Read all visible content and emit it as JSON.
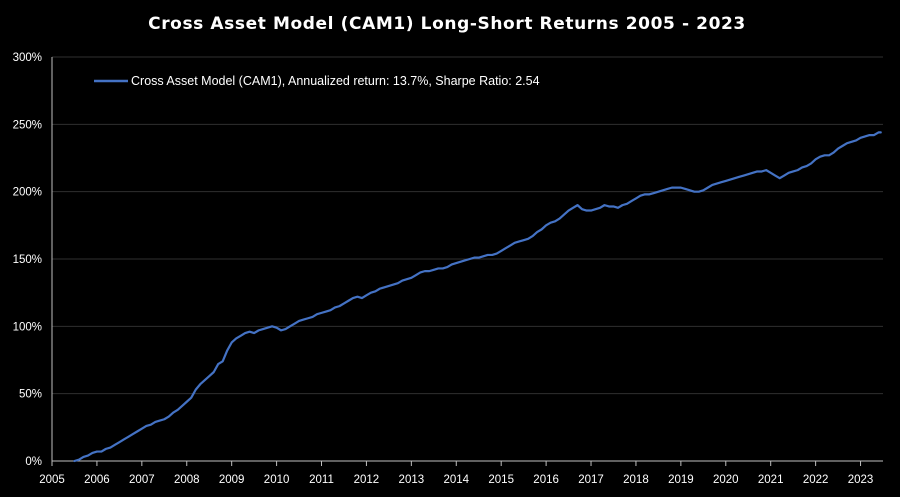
{
  "chart_data": {
    "type": "line",
    "title": "Cross Asset Model (CAM1) Long-Short Returns 2005 - 2023",
    "xlabel": "",
    "ylabel": "",
    "x_tick_labels": [
      "2005",
      "2006",
      "2007",
      "2008",
      "2009",
      "2010",
      "2011",
      "2012",
      "2013",
      "2014",
      "2015",
      "2016",
      "2017",
      "2018",
      "2019",
      "2020",
      "2021",
      "2022",
      "2023"
    ],
    "y_tick_labels": [
      "0%",
      "50%",
      "100%",
      "150%",
      "200%",
      "250%",
      "300%"
    ],
    "xlim": [
      2005.0,
      2023.5
    ],
    "ylim": [
      0,
      300
    ],
    "grid": "horizontal",
    "legend_position": "top-left",
    "background_color": "#000000",
    "gridline_color": "#2f2f2f",
    "axis_color": "#bfbfbf",
    "series": [
      {
        "name": "Cross Asset Model (CAM1), Annualized return: 13.7%, Sharpe Ratio: 2.54",
        "color": "#4472C4",
        "x": [
          2005.5,
          2005.6,
          2005.7,
          2005.8,
          2005.9,
          2006.0,
          2006.1,
          2006.2,
          2006.3,
          2006.4,
          2006.5,
          2006.6,
          2006.7,
          2006.8,
          2006.9,
          2007.0,
          2007.1,
          2007.2,
          2007.3,
          2007.4,
          2007.5,
          2007.6,
          2007.7,
          2007.8,
          2007.9,
          2008.0,
          2008.1,
          2008.2,
          2008.3,
          2008.4,
          2008.5,
          2008.6,
          2008.7,
          2008.8,
          2008.9,
          2009.0,
          2009.1,
          2009.2,
          2009.3,
          2009.4,
          2009.5,
          2009.6,
          2009.7,
          2009.8,
          2009.9,
          2010.0,
          2010.1,
          2010.2,
          2010.3,
          2010.4,
          2010.5,
          2010.6,
          2010.7,
          2010.8,
          2010.9,
          2011.0,
          2011.1,
          2011.2,
          2011.3,
          2011.4,
          2011.5,
          2011.6,
          2011.7,
          2011.8,
          2011.9,
          2012.0,
          2012.1,
          2012.2,
          2012.3,
          2012.4,
          2012.5,
          2012.6,
          2012.7,
          2012.8,
          2012.9,
          2013.0,
          2013.1,
          2013.2,
          2013.3,
          2013.4,
          2013.5,
          2013.6,
          2013.7,
          2013.8,
          2013.9,
          2014.0,
          2014.1,
          2014.2,
          2014.3,
          2014.4,
          2014.5,
          2014.6,
          2014.7,
          2014.8,
          2014.9,
          2015.0,
          2015.1,
          2015.2,
          2015.3,
          2015.4,
          2015.5,
          2015.6,
          2015.7,
          2015.8,
          2015.9,
          2016.0,
          2016.1,
          2016.2,
          2016.3,
          2016.4,
          2016.5,
          2016.6,
          2016.7,
          2016.8,
          2016.9,
          2017.0,
          2017.1,
          2017.2,
          2017.3,
          2017.4,
          2017.5,
          2017.6,
          2017.7,
          2017.8,
          2017.9,
          2018.0,
          2018.1,
          2018.2,
          2018.3,
          2018.4,
          2018.5,
          2018.6,
          2018.7,
          2018.8,
          2018.9,
          2019.0,
          2019.1,
          2019.2,
          2019.3,
          2019.4,
          2019.5,
          2019.6,
          2019.7,
          2019.8,
          2019.9,
          2020.0,
          2020.1,
          2020.2,
          2020.3,
          2020.4,
          2020.5,
          2020.6,
          2020.7,
          2020.8,
          2020.9,
          2021.0,
          2021.1,
          2021.2,
          2021.3,
          2021.4,
          2021.5,
          2021.6,
          2021.7,
          2021.8,
          2021.9,
          2022.0,
          2022.1,
          2022.2,
          2022.3,
          2022.4,
          2022.5,
          2022.6,
          2022.7,
          2022.8,
          2022.9,
          2023.0,
          2023.1,
          2023.2,
          2023.3,
          2023.4,
          2023.45
        ],
        "values": [
          0,
          1,
          3,
          4,
          6,
          7,
          7,
          9,
          10,
          12,
          14,
          16,
          18,
          20,
          22,
          24,
          26,
          27,
          29,
          30,
          31,
          33,
          36,
          38,
          41,
          44,
          47,
          53,
          57,
          60,
          63,
          66,
          72,
          74,
          82,
          88,
          91,
          93,
          95,
          96,
          95,
          97,
          98,
          99,
          100,
          99,
          97,
          98,
          100,
          102,
          104,
          105,
          106,
          107,
          109,
          110,
          111,
          112,
          114,
          115,
          117,
          119,
          121,
          122,
          121,
          123,
          125,
          126,
          128,
          129,
          130,
          131,
          132,
          134,
          135,
          136,
          138,
          140,
          141,
          141,
          142,
          143,
          143,
          144,
          146,
          147,
          148,
          149,
          150,
          151,
          151,
          152,
          153,
          153,
          154,
          156,
          158,
          160,
          162,
          163,
          164,
          165,
          167,
          170,
          172,
          175,
          177,
          178,
          180,
          183,
          186,
          188,
          190,
          187,
          186,
          186,
          187,
          188,
          190,
          189,
          189,
          188,
          190,
          191,
          193,
          195,
          197,
          198,
          198,
          199,
          200,
          201,
          202,
          203,
          203,
          203,
          202,
          201,
          200,
          200,
          201,
          203,
          205,
          206,
          207,
          208,
          209,
          210,
          211,
          212,
          213,
          214,
          215,
          215,
          216,
          214,
          212,
          210,
          212,
          214,
          215,
          216,
          218,
          219,
          221,
          224,
          226,
          227,
          227,
          229,
          232,
          234,
          236,
          237,
          238,
          240,
          241,
          242,
          242,
          244,
          244
        ]
      }
    ]
  }
}
